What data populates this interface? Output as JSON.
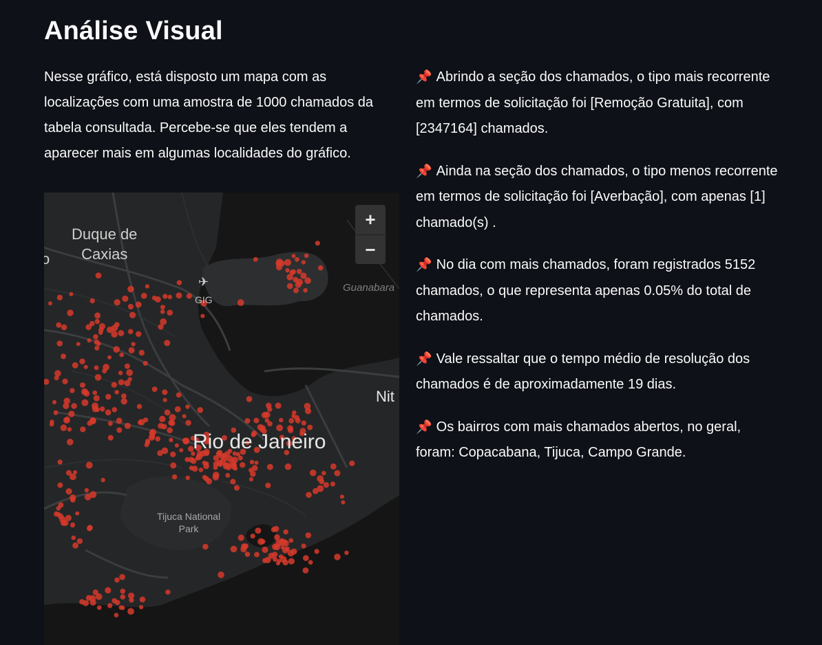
{
  "page": {
    "title": "Análise Visual",
    "intro": "Nesse gráfico, está disposto um mapa com as localizações com uma amostra de 1000 chamados da tabela consultada. Percebe-se que eles tendem a aparecer mais em algumas localidades do gráfico."
  },
  "map": {
    "labels": {
      "duque_de": "Duque de",
      "caxias": "Caxias",
      "rio": "Rio de Janeiro",
      "tijuca_1": "Tijuca National",
      "tijuca_2": "Park",
      "gig": "GIG",
      "guanabara": "Guanabara",
      "nit": "Nit",
      "edge1": "o",
      "edge2": "i"
    },
    "zoom_in_label": "+",
    "zoom_out_label": "−",
    "point_color": "#d63a2c",
    "plane_icon": "✈"
  },
  "insights": {
    "pin_icon": "📌",
    "items": [
      "Abrindo a seção dos chamados, o tipo mais recorrente em termos de solicitação foi [Remoção Gratuita], com [2347164] chamados.",
      "Ainda na seção dos chamados, o tipo menos recorrente em termos de solicitação foi [Averbação], com apenas [1] chamado(s) .",
      "No dia com mais chamados, foram registrados 5152 chamados, o que representa apenas 0.05% do total de chamados.",
      "Vale ressaltar que o tempo médio de resolução dos chamados é de aproximadamente 19 dias.",
      "Os bairros com mais chamados abertos, no geral, foram: Copacabana, Tijuca, Campo Grande."
    ]
  }
}
